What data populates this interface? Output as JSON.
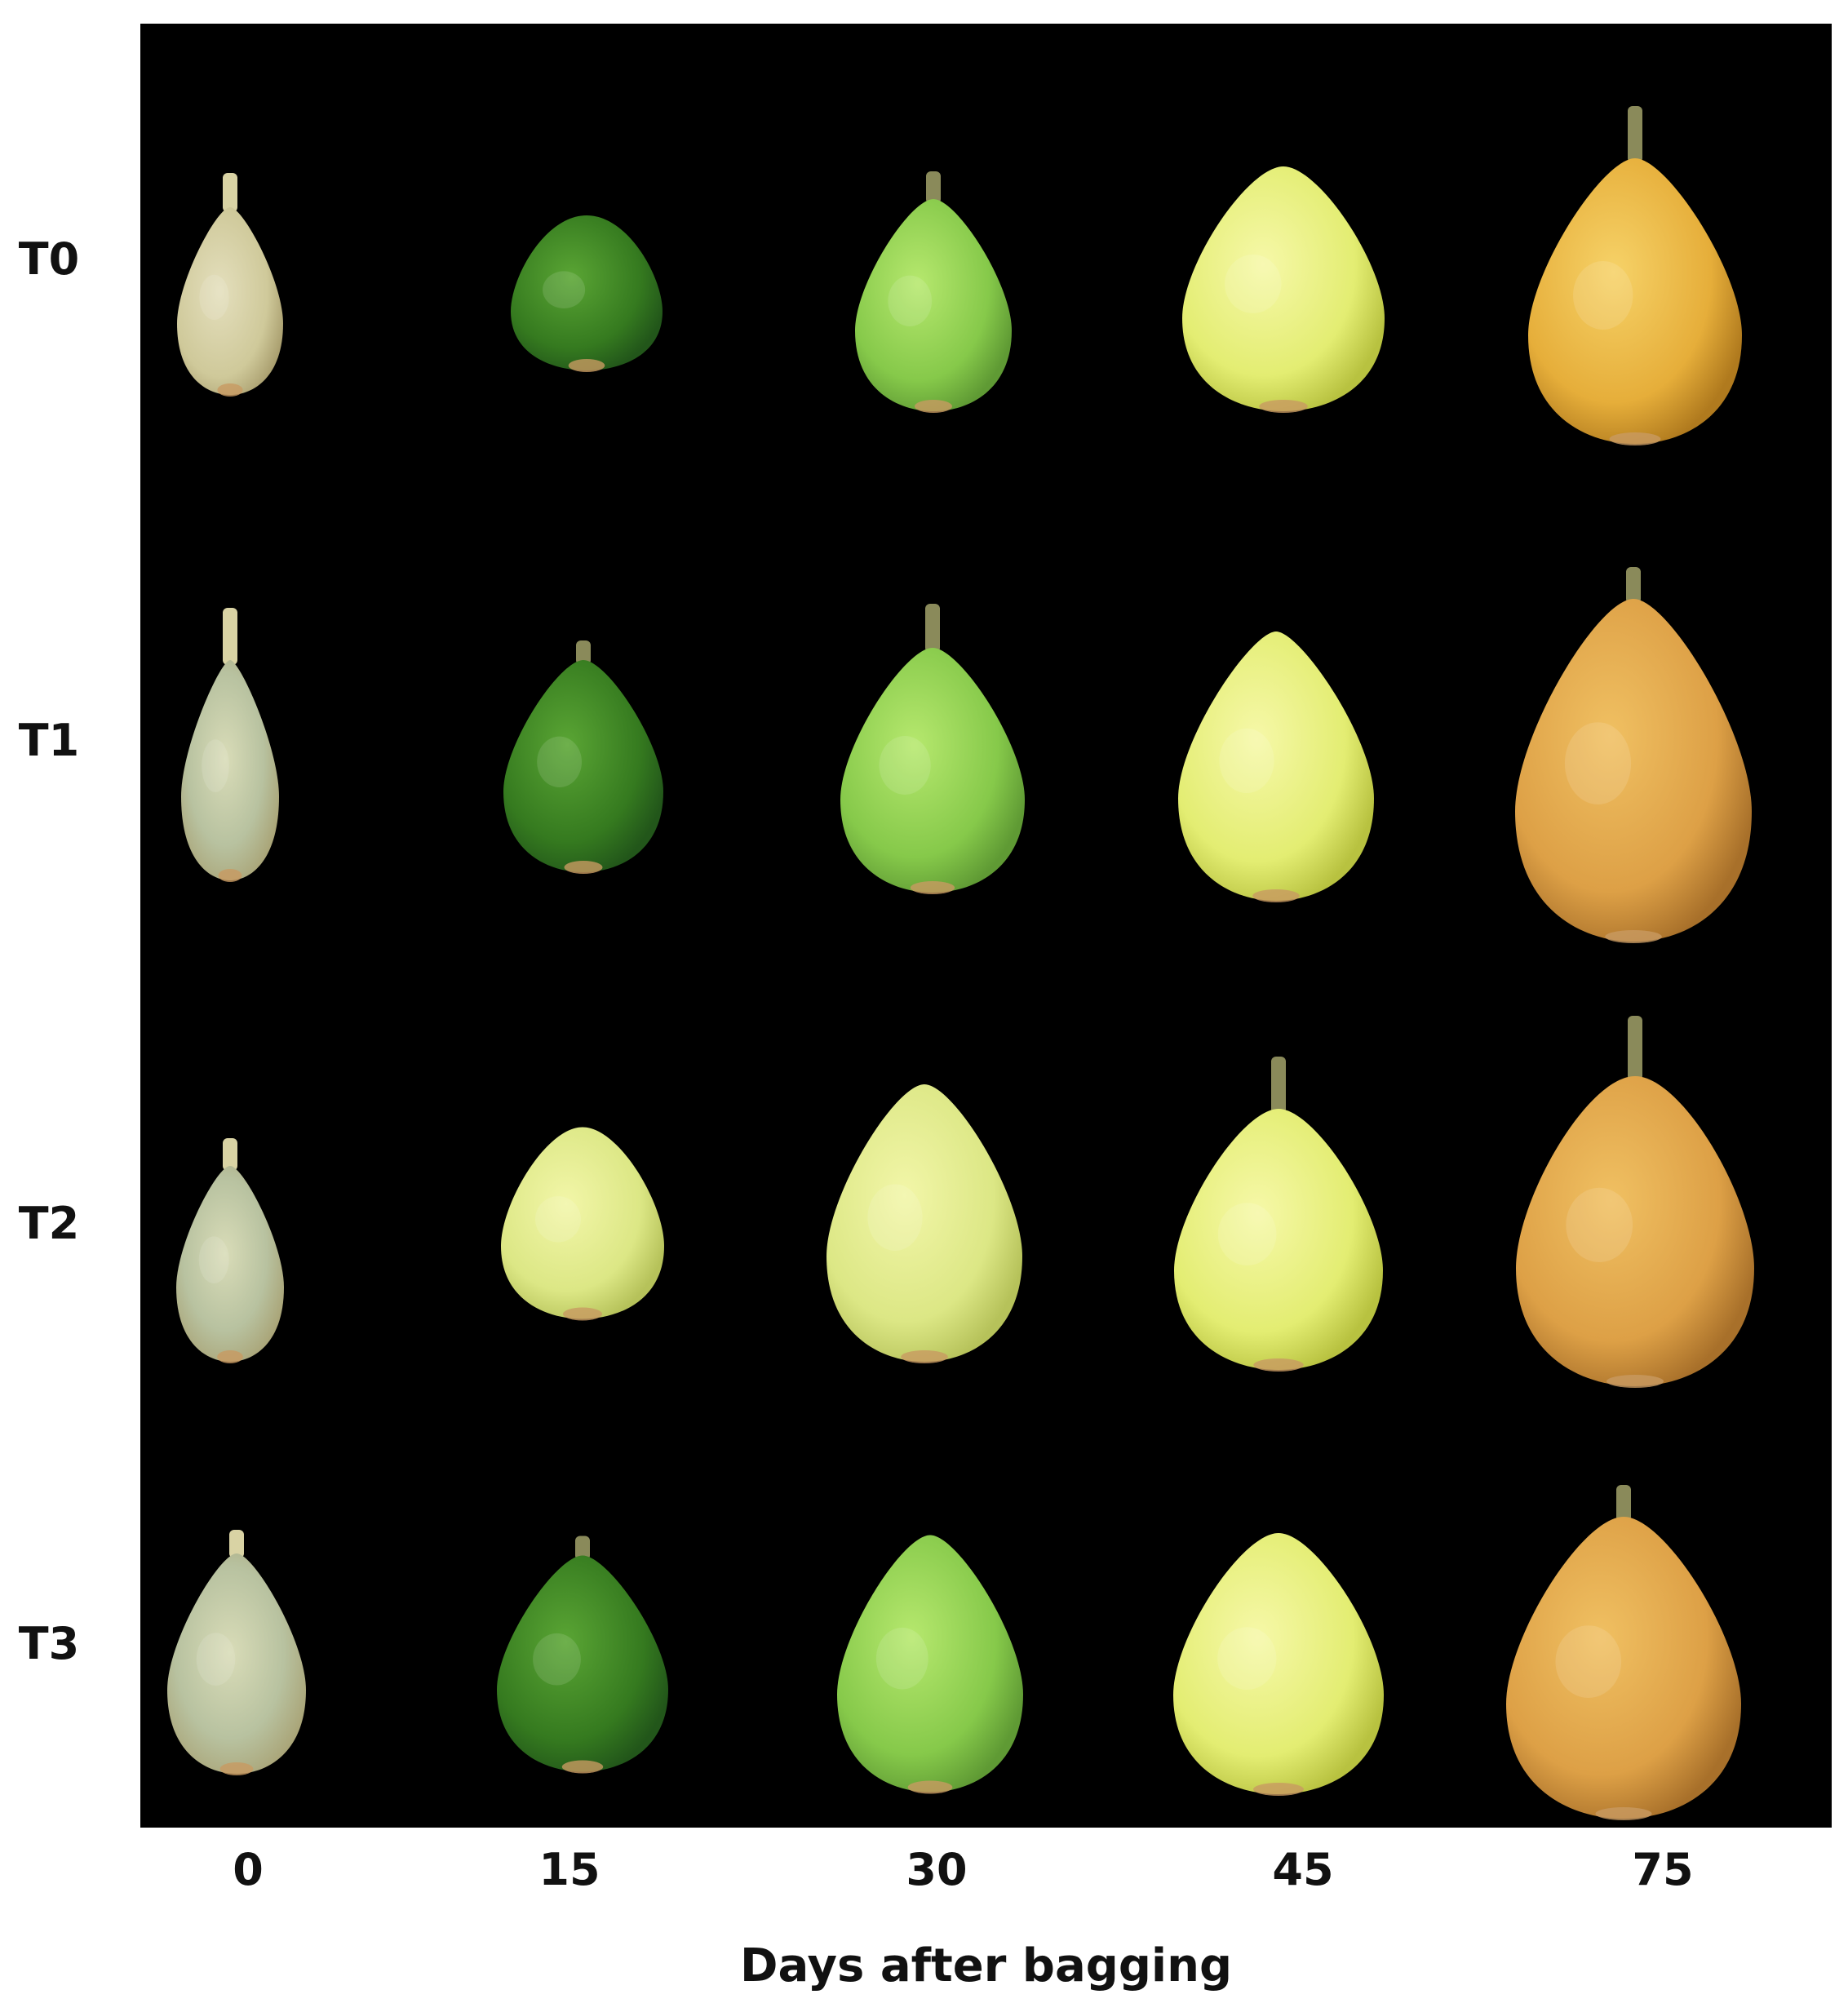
{
  "figure": {
    "rows": [
      {
        "label": "T0"
      },
      {
        "label": "T1"
      },
      {
        "label": "T2"
      },
      {
        "label": "T3"
      }
    ],
    "columns": [
      {
        "label": "0"
      },
      {
        "label": "15"
      },
      {
        "label": "30"
      },
      {
        "label": "45"
      },
      {
        "label": "75"
      }
    ],
    "x_axis_title": "Days after bagging",
    "background_color": "#000000",
    "stage_colors": {
      "day_0": "#d8d2a8",
      "day_15_green": "#3f8a22",
      "day_15_yellow": "#dbe870",
      "day_30_green": "#8fd44a",
      "day_30_yellow": "#e8f09a",
      "day_45": "#e6f07a",
      "day_75": "#e9b640"
    }
  }
}
